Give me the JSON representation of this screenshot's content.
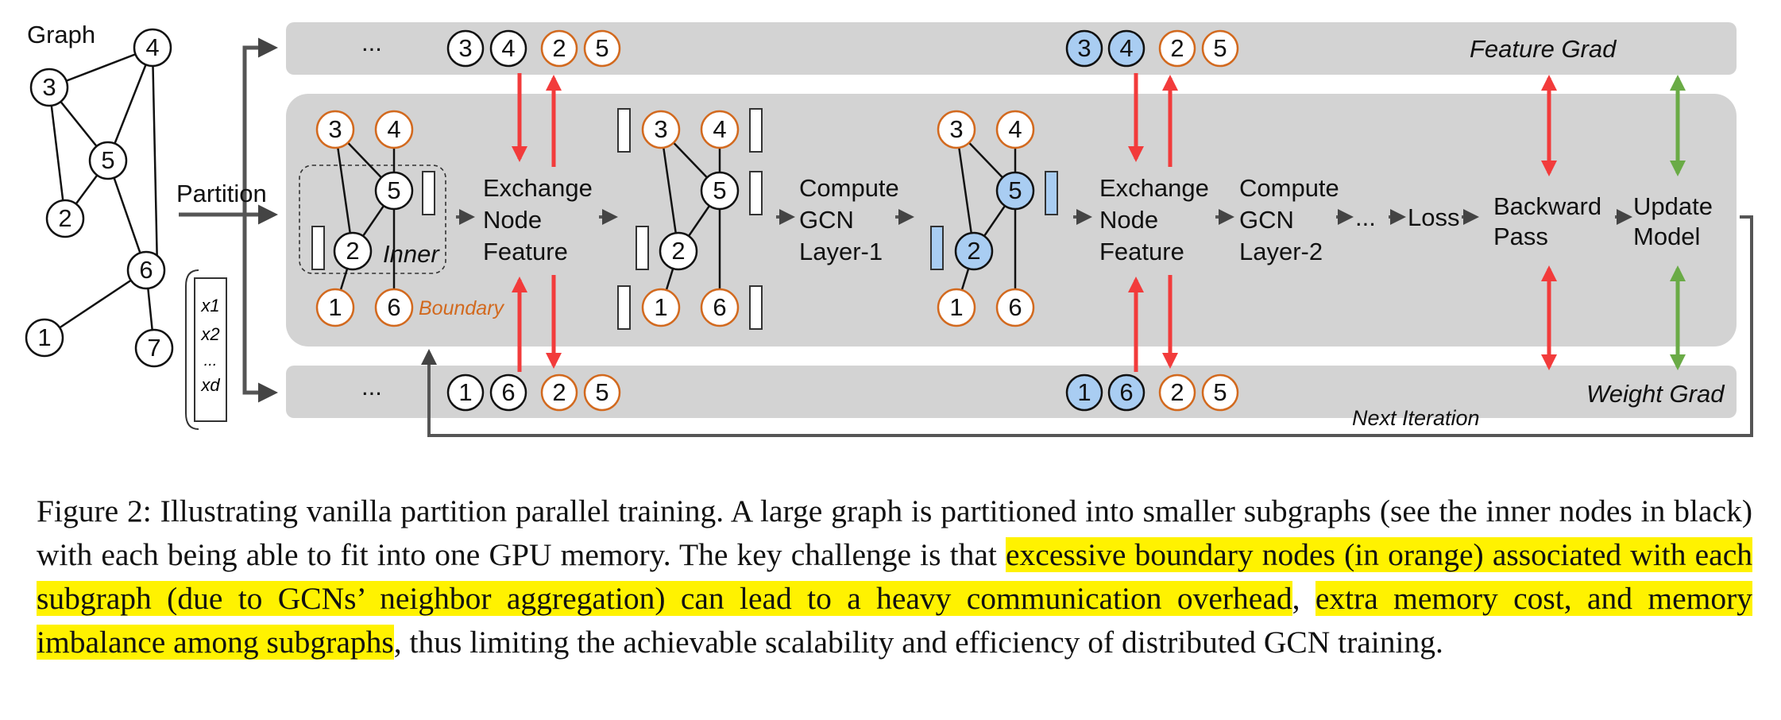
{
  "diagram": {
    "graph_label": "Graph",
    "partition_label": "Partition",
    "graph_nodes": [
      "1",
      "2",
      "3",
      "4",
      "5",
      "6",
      "7"
    ],
    "feature_list": [
      "x1",
      "x2",
      "...",
      "xd"
    ],
    "top_lane": {
      "ellipsis": "...",
      "label": "Feature Grad",
      "nodes_a": [
        "3",
        "4",
        "2",
        "5"
      ],
      "nodes_b": [
        "3",
        "4",
        "2",
        "5"
      ]
    },
    "bottom_lane": {
      "ellipsis": "...",
      "label": "Weight Grad",
      "nodes_a": [
        "1",
        "6",
        "2",
        "5"
      ],
      "nodes_b": [
        "1",
        "6",
        "2",
        "5"
      ]
    },
    "subgraph_nodes": [
      "3",
      "4",
      "5",
      "2",
      "1",
      "6"
    ],
    "inner_label": "Inner",
    "boundary_label": "Boundary",
    "steps": {
      "exchange1": [
        "Exchange",
        "Node",
        "Feature"
      ],
      "compute1": [
        "Compute",
        "GCN",
        "Layer-1"
      ],
      "exchange2": [
        "Exchange",
        "Node",
        "Feature"
      ],
      "compute2": [
        "Compute",
        "GCN",
        "Layer-2"
      ],
      "ellipsis": "...",
      "loss": "Loss",
      "backward": [
        "Backward",
        "Pass"
      ],
      "update": [
        "Update",
        "Model"
      ]
    },
    "next_iteration_label": "Next Iteration",
    "colors": {
      "panel": "#d3d3d3",
      "boundary": "#d2691e",
      "highlight_node": "#a9cdf2",
      "red_arrow": "#f23b3b",
      "green_arrow": "#6aab46"
    }
  },
  "caption": {
    "part1": "Figure 2: Illustrating vanilla partition parallel training. A large graph is partitioned into smaller subgraphs (see the inner nodes in black) with each being able to fit into one GPU memory. The key challenge is that ",
    "highlight": "excessive boundary nodes (in orange) associated with each subgraph (due to GCNs’ neighbor aggregation) can lead to a heavy communication overhead",
    "part2": ", ",
    "highlight2": "extra memory cost, and memory imbalance among subgraphs",
    "part3": ", thus limiting the achievable scalability and efficiency of distributed GCN training."
  }
}
